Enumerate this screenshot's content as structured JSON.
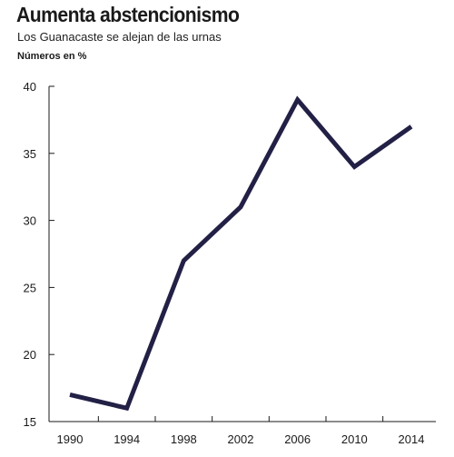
{
  "chart_data": {
    "type": "line",
    "title": "Aumenta abstencionismo",
    "subtitle": "Los Guanacaste se alejan de las urnas",
    "ylabel": "Números en %",
    "xlabel": "",
    "x_ticks": [
      "1990",
      "1994",
      "1998",
      "2002",
      "2006",
      "2010",
      "2014"
    ],
    "x_range": [
      1990,
      2014
    ],
    "y_ticks": [
      15,
      20,
      25,
      30,
      35,
      40
    ],
    "ylim": [
      15,
      40
    ],
    "series": [
      {
        "x": [
          1990,
          1994,
          1998,
          2002,
          2006,
          2010,
          2014
        ],
        "values": [
          17,
          16,
          27,
          31,
          39,
          34,
          37
        ]
      }
    ],
    "line_color": "#232046",
    "grid": false
  }
}
